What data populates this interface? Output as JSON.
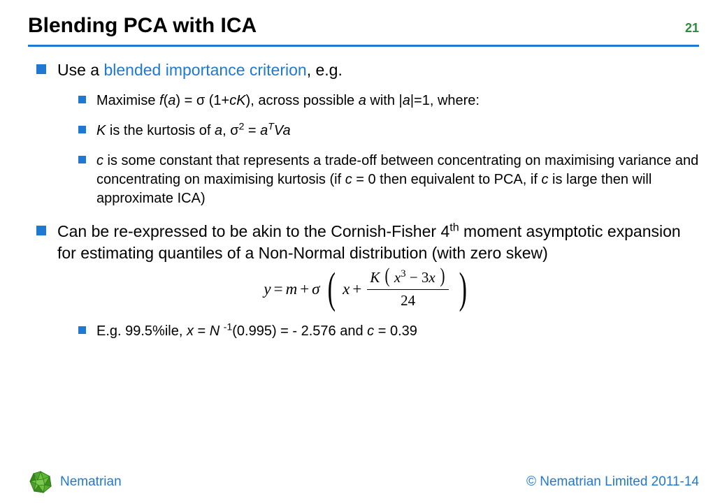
{
  "page": {
    "title": "Blending PCA with ICA",
    "number": "21"
  },
  "colors": {
    "accent": "#1f78d1",
    "bullet": "#1f78d1",
    "page_num": "#2e8b3d",
    "rule": "#1f78d1",
    "highlight": "#1f78d1",
    "brand_text": "#1f78d1",
    "copyright": "#1f78d1",
    "logo_green_dark": "#2a7a1a",
    "logo_green_light": "#6fbf3f",
    "text": "#000000",
    "background": "#ffffff"
  },
  "fonts": {
    "body_family": "Arial, Helvetica, sans-serif",
    "title_size_pt": 22,
    "l1_size_pt": 17,
    "l2_size_pt": 15,
    "formula_family": "Times New Roman"
  },
  "bullets": {
    "b1": {
      "pre": "Use a ",
      "hl": "blended importance criterion",
      "post": ", e.g."
    },
    "b1a_plain": "Maximise f(a) = σ (1+cK), across possible a with |a|=1, where:",
    "b1b_plain": "K is the kurtosis of a, σ² = aᵀVa",
    "b1c_plain": "c is some constant that represents a trade-off between concentrating on maximising variance and concentrating on maximising kurtosis (if c = 0 then equivalent to PCA, if c is large then will approximate ICA)",
    "b2_plain": "Can be re-expressed to be akin to the Cornish-Fisher 4th moment asymptotic expansion for estimating quantiles of a Non-Normal distribution (with zero skew)",
    "b2a_plain": "E.g. 99.5%ile, x = N⁻¹(0.995) = - 2.576 and c = 0.39"
  },
  "formula": {
    "lhs": "y",
    "m": "m",
    "sigma": "σ",
    "x": "x",
    "K": "K",
    "num_inner": "x³ − 3x",
    "den": "24",
    "text": "y = m + σ ( x + K(x³ − 3x) / 24 )"
  },
  "footer": {
    "brand": "Nematrian",
    "copyright": "© Nematrian Limited 2011-14"
  }
}
